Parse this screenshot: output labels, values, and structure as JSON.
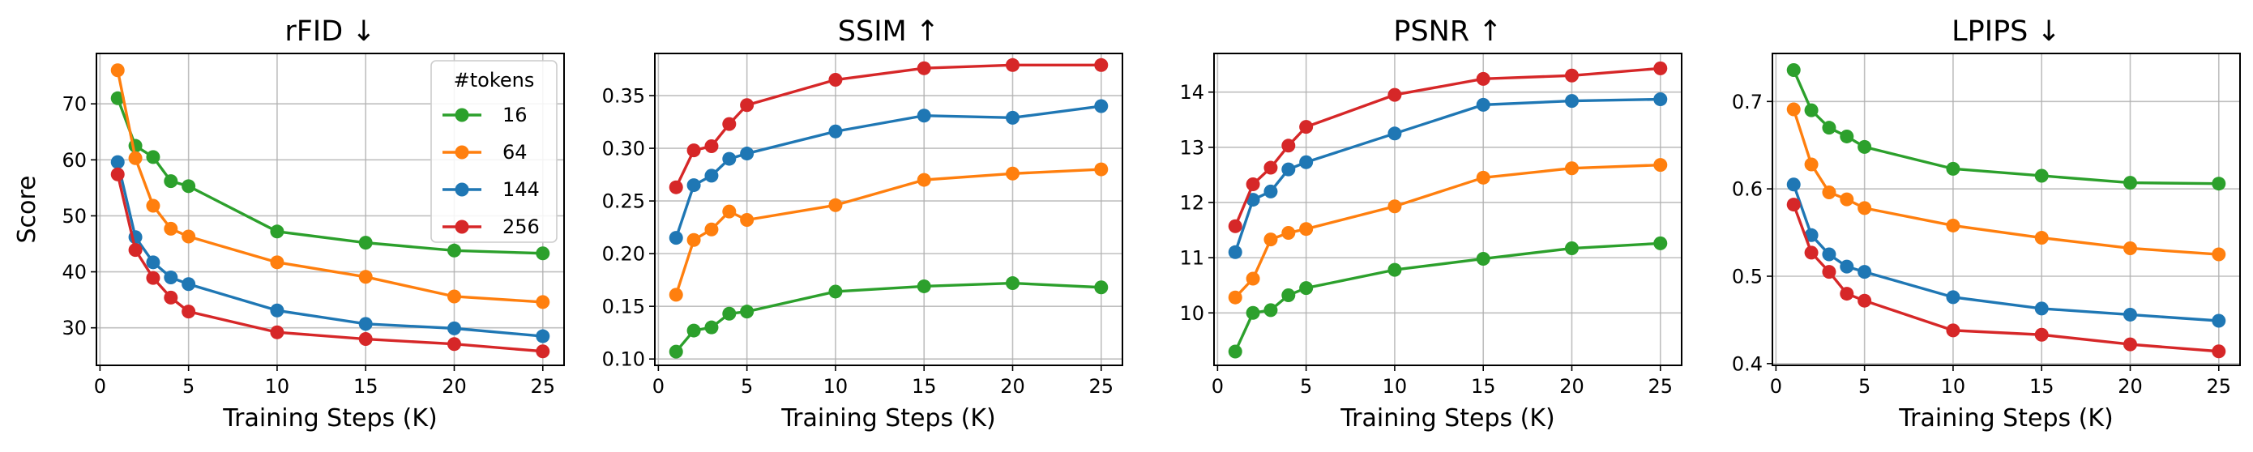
{
  "chart_data": [
    {
      "type": "line",
      "title": "rFID ↓",
      "xlabel": "Training Steps (K)",
      "ylabel": "Score",
      "x": [
        1,
        2,
        3,
        4,
        5,
        10,
        15,
        20,
        25
      ],
      "xlim": [
        -0.2,
        26.2
      ],
      "ylim": [
        23.3,
        79.0
      ],
      "xticks": [
        0,
        5,
        10,
        15,
        20,
        25
      ],
      "yticks": [
        30,
        40,
        50,
        60,
        70
      ],
      "ytick_labels": [
        "30",
        "40",
        "50",
        "60",
        "70"
      ],
      "grid": true,
      "legend": {
        "title": "#tokens",
        "placement": "top-right"
      },
      "series": [
        {
          "name": "16",
          "color": "#2ca02c",
          "values": [
            71.0,
            62.5,
            60.5,
            56.2,
            55.3,
            47.2,
            45.2,
            43.8,
            43.3
          ]
        },
        {
          "name": "64",
          "color": "#ff7f0e",
          "values": [
            76.0,
            60.3,
            51.8,
            47.7,
            46.3,
            41.7,
            39.1,
            35.6,
            34.6
          ]
        },
        {
          "name": "144",
          "color": "#1f77b4",
          "values": [
            59.6,
            46.2,
            41.7,
            39.0,
            37.8,
            33.1,
            30.7,
            29.9,
            28.5
          ]
        },
        {
          "name": "256",
          "color": "#d62728",
          "values": [
            57.4,
            43.9,
            38.9,
            35.4,
            32.9,
            29.2,
            28.0,
            27.1,
            25.8
          ]
        }
      ]
    },
    {
      "type": "line",
      "title": "SSIM ↑",
      "xlabel": "Training Steps (K)",
      "ylabel": "",
      "x": [
        1,
        2,
        3,
        4,
        5,
        10,
        15,
        20,
        25
      ],
      "xlim": [
        -0.2,
        26.2
      ],
      "ylim": [
        0.094,
        0.39
      ],
      "xticks": [
        0,
        5,
        10,
        15,
        20,
        25
      ],
      "yticks": [
        0.1,
        0.15,
        0.2,
        0.25,
        0.3,
        0.35
      ],
      "ytick_labels": [
        "0.10",
        "0.15",
        "0.20",
        "0.25",
        "0.30",
        "0.35"
      ],
      "grid": true,
      "series": [
        {
          "name": "16",
          "color": "#2ca02c",
          "values": [
            0.107,
            0.127,
            0.13,
            0.143,
            0.145,
            0.164,
            0.169,
            0.172,
            0.168
          ]
        },
        {
          "name": "64",
          "color": "#ff7f0e",
          "values": [
            0.161,
            0.213,
            0.223,
            0.24,
            0.232,
            0.246,
            0.27,
            0.276,
            0.28
          ]
        },
        {
          "name": "144",
          "color": "#1f77b4",
          "values": [
            0.215,
            0.265,
            0.274,
            0.29,
            0.295,
            0.316,
            0.331,
            0.329,
            0.34
          ]
        },
        {
          "name": "256",
          "color": "#d62728",
          "values": [
            0.263,
            0.298,
            0.302,
            0.323,
            0.341,
            0.365,
            0.376,
            0.379,
            0.379
          ]
        }
      ]
    },
    {
      "type": "line",
      "title": "PSNR ↑",
      "xlabel": "Training Steps (K)",
      "ylabel": "",
      "x": [
        1,
        2,
        3,
        4,
        5,
        10,
        15,
        20,
        25
      ],
      "xlim": [
        -0.2,
        26.2
      ],
      "ylim": [
        9.05,
        14.7
      ],
      "xticks": [
        0,
        5,
        10,
        15,
        20,
        25
      ],
      "yticks": [
        10,
        11,
        12,
        13,
        14
      ],
      "ytick_labels": [
        "10",
        "11",
        "12",
        "13",
        "14"
      ],
      "grid": true,
      "series": [
        {
          "name": "16",
          "color": "#2ca02c",
          "values": [
            9.3,
            10.0,
            10.05,
            10.32,
            10.45,
            10.78,
            10.98,
            11.17,
            11.26
          ]
        },
        {
          "name": "64",
          "color": "#ff7f0e",
          "values": [
            10.28,
            10.62,
            11.33,
            11.45,
            11.52,
            11.93,
            12.45,
            12.62,
            12.68
          ]
        },
        {
          "name": "144",
          "color": "#1f77b4",
          "values": [
            11.1,
            12.05,
            12.2,
            12.6,
            12.73,
            13.25,
            13.77,
            13.84,
            13.87
          ]
        },
        {
          "name": "256",
          "color": "#d62728",
          "values": [
            11.57,
            12.33,
            12.63,
            13.03,
            13.37,
            13.95,
            14.24,
            14.3,
            14.43
          ]
        }
      ]
    },
    {
      "type": "line",
      "title": "LPIPS ↓",
      "xlabel": "Training Steps (K)",
      "ylabel": "",
      "x": [
        1,
        2,
        3,
        4,
        5,
        10,
        15,
        20,
        25
      ],
      "xlim": [
        -0.2,
        26.2
      ],
      "ylim": [
        0.398,
        0.755
      ],
      "xticks": [
        0,
        5,
        10,
        15,
        20,
        25
      ],
      "yticks": [
        0.4,
        0.5,
        0.6,
        0.7
      ],
      "ytick_labels": [
        "0.4",
        "0.5",
        "0.6",
        "0.7"
      ],
      "grid": true,
      "series": [
        {
          "name": "16",
          "color": "#2ca02c",
          "values": [
            0.736,
            0.69,
            0.67,
            0.66,
            0.648,
            0.623,
            0.615,
            0.607,
            0.606
          ]
        },
        {
          "name": "64",
          "color": "#ff7f0e",
          "values": [
            0.691,
            0.628,
            0.596,
            0.588,
            0.578,
            0.558,
            0.544,
            0.532,
            0.525
          ]
        },
        {
          "name": "144",
          "color": "#1f77b4",
          "values": [
            0.605,
            0.547,
            0.525,
            0.511,
            0.505,
            0.476,
            0.463,
            0.456,
            0.449
          ]
        },
        {
          "name": "256",
          "color": "#d62728",
          "values": [
            0.582,
            0.527,
            0.505,
            0.48,
            0.472,
            0.438,
            0.433,
            0.422,
            0.414
          ]
        }
      ]
    }
  ]
}
